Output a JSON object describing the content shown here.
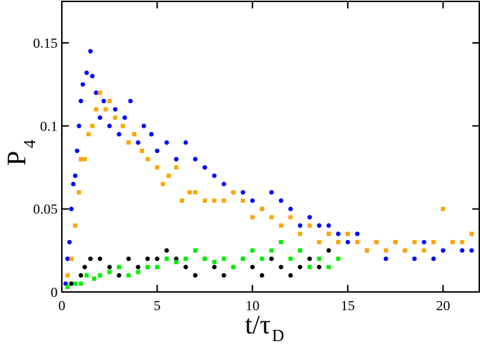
{
  "chart_data": {
    "type": "scatter",
    "xlabel": {
      "main": "t/τ",
      "sub": "D"
    },
    "ylabel": {
      "main": "P",
      "sub": "4"
    },
    "xlim": [
      0,
      21.9
    ],
    "ylim": [
      0,
      0.175
    ],
    "xticks": [
      0,
      5,
      10,
      15,
      20
    ],
    "yticks": [
      0,
      0.05,
      0.1,
      0.15
    ],
    "series": [
      {
        "color": "#0000ff",
        "marker": "circle",
        "x": [
          0.2,
          0.3,
          0.4,
          0.5,
          0.6,
          0.7,
          0.8,
          0.9,
          1.0,
          1.1,
          1.3,
          1.5,
          1.6,
          1.8,
          2.0,
          2.2,
          2.5,
          2.8,
          3.0,
          3.3,
          3.6,
          4.0,
          4.3,
          4.7,
          5.0,
          5.5,
          6.0,
          6.5,
          7.0,
          7.5,
          8.0,
          8.5,
          9.0,
          9.5,
          10.0,
          10.5,
          11.0,
          11.5,
          12.0,
          12.5,
          13.0,
          13.5,
          14.0,
          14.5,
          15.0,
          15.5,
          16.0,
          16.5,
          17.0,
          17.5,
          18.0,
          18.5,
          19.0,
          19.5,
          20.0,
          20.5,
          21.0,
          21.5
        ],
        "y": [
          0.005,
          0.02,
          0.03,
          0.05,
          0.065,
          0.07,
          0.085,
          0.1,
          0.115,
          0.125,
          0.132,
          0.145,
          0.13,
          0.12,
          0.105,
          0.115,
          0.1,
          0.11,
          0.095,
          0.105,
          0.115,
          0.09,
          0.1,
          0.095,
          0.085,
          0.09,
          0.08,
          0.09,
          0.08,
          0.075,
          0.07,
          0.065,
          0.06,
          0.06,
          0.055,
          0.05,
          0.06,
          0.055,
          0.05,
          0.04,
          0.045,
          0.04,
          0.04,
          0.035,
          0.03,
          0.035,
          0.025,
          0.03,
          0.02,
          0.03,
          0.025,
          0.02,
          0.03,
          0.02,
          0.025,
          0.03,
          0.025,
          0.025
        ]
      },
      {
        "color": "#ffa500",
        "marker": "square",
        "x": [
          0.3,
          0.5,
          0.7,
          0.9,
          1.0,
          1.2,
          1.4,
          1.6,
          1.8,
          2.0,
          2.3,
          2.5,
          2.8,
          3.2,
          3.5,
          3.8,
          4.2,
          4.5,
          5.0,
          5.3,
          5.6,
          6.0,
          6.3,
          6.7,
          7.0,
          7.5,
          8.0,
          8.5,
          9.0,
          9.5,
          10.0,
          10.5,
          11.0,
          11.5,
          12.0,
          12.5,
          13.0,
          13.5,
          14.0,
          14.5,
          15.0,
          15.5,
          16.0,
          16.5,
          17.0,
          17.5,
          18.0,
          18.5,
          19.0,
          19.5,
          20.0,
          20.5,
          21.0,
          21.5
        ],
        "y": [
          0.01,
          0.02,
          0.04,
          0.06,
          0.08,
          0.08,
          0.095,
          0.1,
          0.11,
          0.12,
          0.11,
          0.115,
          0.105,
          0.1,
          0.09,
          0.095,
          0.085,
          0.08,
          0.075,
          0.065,
          0.07,
          0.075,
          0.055,
          0.06,
          0.06,
          0.055,
          0.055,
          0.055,
          0.06,
          0.055,
          0.045,
          0.05,
          0.045,
          0.04,
          0.045,
          0.035,
          0.04,
          0.03,
          0.035,
          0.03,
          0.035,
          0.03,
          0.025,
          0.03,
          0.025,
          0.03,
          0.025,
          0.03,
          0.025,
          0.03,
          0.05,
          0.03,
          0.03,
          0.035
        ]
      },
      {
        "color": "#000000",
        "marker": "circle",
        "x": [
          0.5,
          1,
          1.2,
          1.5,
          2,
          2.5,
          3,
          3.5,
          4,
          4.5,
          5,
          5.5,
          6,
          6.5,
          7,
          7.5,
          8,
          8.5,
          9,
          9.5,
          10,
          10.5,
          11,
          11.5,
          12,
          12.5,
          13,
          13.5,
          14
        ],
        "y": [
          0.005,
          0.01,
          0.015,
          0.02,
          0.02,
          0.015,
          0.01,
          0.02,
          0.015,
          0.02,
          0.02,
          0.025,
          0.02,
          0.015,
          0.01,
          0.02,
          0.015,
          0.01,
          0.015,
          0.02,
          0.015,
          0.01,
          0.02,
          0.015,
          0.01,
          0.015,
          0.02,
          0.015,
          0.025
        ]
      },
      {
        "color": "#00ee00",
        "marker": "square",
        "x": [
          0.3,
          0.7,
          1,
          1.3,
          1.7,
          2,
          2.5,
          3,
          3.5,
          4,
          4.5,
          5,
          5.5,
          6,
          6.5,
          7,
          7.5,
          8,
          8.5,
          9,
          9.5,
          10,
          10.5,
          11,
          11.5,
          12,
          12.5,
          13,
          13.5,
          14,
          14.5
        ],
        "y": [
          0.003,
          0.005,
          0.005,
          0.01,
          0.008,
          0.01,
          0.012,
          0.015,
          0.01,
          0.012,
          0.015,
          0.015,
          0.02,
          0.018,
          0.02,
          0.025,
          0.02,
          0.018,
          0.02,
          0.015,
          0.02,
          0.025,
          0.02,
          0.025,
          0.03,
          0.02,
          0.025,
          0.015,
          0.02,
          0.015,
          0.02
        ]
      }
    ]
  }
}
